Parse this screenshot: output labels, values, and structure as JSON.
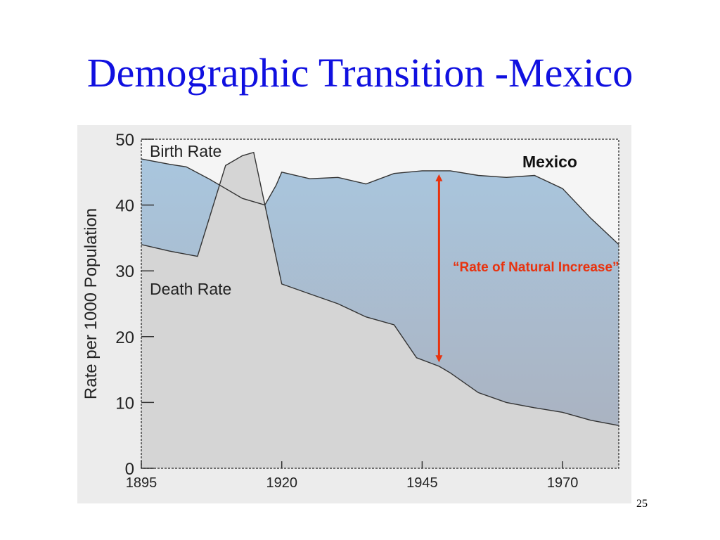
{
  "slide": {
    "title": "Demographic Transition -Mexico",
    "number": "25"
  },
  "colors": {
    "title": "#1010e0",
    "birth_fill_top": "#a9c6de",
    "birth_fill_bottom": "#aab0bd",
    "death_fill": "#d5d5d5",
    "arrow": "#e8320e",
    "plot_bg": "#f5f5f5"
  },
  "chart_data": {
    "type": "area",
    "title": "Mexico",
    "xlabel": "",
    "ylabel": "Rate per 1000 Population",
    "xlim": [
      1895,
      1980
    ],
    "ylim": [
      0,
      50
    ],
    "x_ticks": [
      1895,
      1920,
      1945,
      1970
    ],
    "y_ticks": [
      0,
      10,
      20,
      30,
      40,
      50
    ],
    "grid": false,
    "series": [
      {
        "name": "Birth Rate",
        "x": [
          1895,
          1900,
          1903,
          1907,
          1913,
          1917,
          1919,
          1920,
          1925,
          1930,
          1935,
          1940,
          1945,
          1950,
          1955,
          1960,
          1965,
          1970,
          1975,
          1980
        ],
        "y": [
          47,
          46.2,
          45.8,
          44,
          41,
          40,
          43,
          45,
          44,
          44.2,
          43.2,
          44.8,
          45.2,
          45.2,
          44.5,
          44.2,
          44.5,
          42.5,
          38,
          34
        ]
      },
      {
        "name": "Death Rate",
        "x": [
          1895,
          1900,
          1905,
          1910,
          1913,
          1915,
          1920,
          1925,
          1930,
          1935,
          1940,
          1944,
          1948,
          1950,
          1955,
          1960,
          1965,
          1970,
          1975,
          1980
        ],
        "y": [
          34,
          33,
          32.2,
          46,
          47.5,
          48,
          28,
          26.5,
          25,
          23,
          21.8,
          16.8,
          15.5,
          14.5,
          11.5,
          10,
          9.2,
          8.5,
          7.3,
          6.5
        ]
      }
    ],
    "annotations": [
      {
        "text": "“Rate of Natural Increase”",
        "x": 1948,
        "y_from": 45,
        "y_to": 16
      }
    ]
  }
}
